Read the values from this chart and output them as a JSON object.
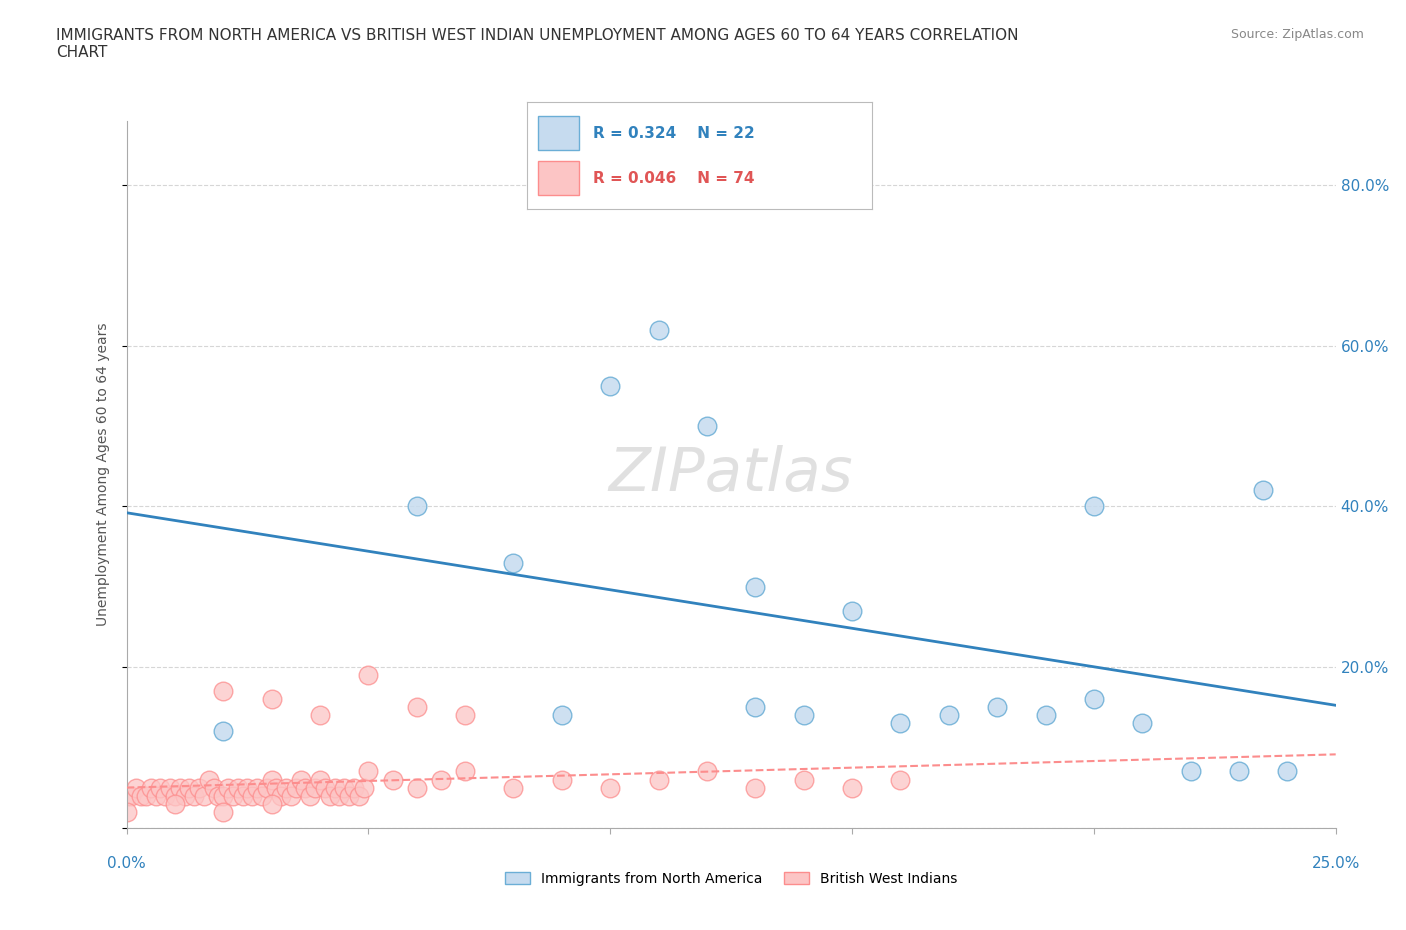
{
  "title": "IMMIGRANTS FROM NORTH AMERICA VS BRITISH WEST INDIAN UNEMPLOYMENT AMONG AGES 60 TO 64 YEARS CORRELATION\nCHART",
  "source": "Source: ZipAtlas.com",
  "ylabel": "Unemployment Among Ages 60 to 64 years",
  "y_ticks": [
    0.0,
    0.2,
    0.4,
    0.6,
    0.8
  ],
  "y_tick_labels": [
    "",
    "20.0%",
    "40.0%",
    "60.0%",
    "80.0%"
  ],
  "x_lim": [
    0.0,
    0.25
  ],
  "y_lim": [
    0.0,
    0.88
  ],
  "legend1_R": "R = 0.324",
  "legend1_N": "N = 22",
  "legend2_R": "R = 0.046",
  "legend2_N": "N = 74",
  "series1_label": "Immigrants from North America",
  "series2_label": "British West Indians",
  "color1": "#6baed6",
  "color2": "#fc8d8d",
  "color1_fill": "#c6dbef",
  "color2_fill": "#fcc5c5",
  "watermark": "ZIPatlas",
  "north_america_x": [
    0.02,
    0.06,
    0.08,
    0.09,
    0.1,
    0.11,
    0.12,
    0.13,
    0.13,
    0.14,
    0.15,
    0.16,
    0.17,
    0.18,
    0.19,
    0.2,
    0.21,
    0.22,
    0.23,
    0.24,
    0.235,
    0.2
  ],
  "north_america_y": [
    0.12,
    0.4,
    0.33,
    0.14,
    0.55,
    0.62,
    0.5,
    0.3,
    0.15,
    0.14,
    0.27,
    0.13,
    0.14,
    0.15,
    0.14,
    0.4,
    0.13,
    0.07,
    0.07,
    0.07,
    0.42,
    0.16
  ],
  "bwi_x": [
    0.0,
    0.001,
    0.002,
    0.003,
    0.004,
    0.005,
    0.006,
    0.007,
    0.008,
    0.009,
    0.01,
    0.011,
    0.012,
    0.013,
    0.014,
    0.015,
    0.016,
    0.017,
    0.018,
    0.019,
    0.02,
    0.021,
    0.022,
    0.023,
    0.024,
    0.025,
    0.026,
    0.027,
    0.028,
    0.029,
    0.03,
    0.031,
    0.032,
    0.033,
    0.034,
    0.035,
    0.036,
    0.037,
    0.038,
    0.039,
    0.04,
    0.041,
    0.042,
    0.043,
    0.044,
    0.045,
    0.046,
    0.047,
    0.048,
    0.049,
    0.05,
    0.055,
    0.06,
    0.065,
    0.07,
    0.08,
    0.09,
    0.1,
    0.11,
    0.12,
    0.13,
    0.14,
    0.15,
    0.16,
    0.05,
    0.03,
    0.02,
    0.04,
    0.06,
    0.07,
    0.0,
    0.01,
    0.02,
    0.03
  ],
  "bwi_y": [
    0.04,
    0.04,
    0.05,
    0.04,
    0.04,
    0.05,
    0.04,
    0.05,
    0.04,
    0.05,
    0.04,
    0.05,
    0.04,
    0.05,
    0.04,
    0.05,
    0.04,
    0.06,
    0.05,
    0.04,
    0.04,
    0.05,
    0.04,
    0.05,
    0.04,
    0.05,
    0.04,
    0.05,
    0.04,
    0.05,
    0.06,
    0.05,
    0.04,
    0.05,
    0.04,
    0.05,
    0.06,
    0.05,
    0.04,
    0.05,
    0.06,
    0.05,
    0.04,
    0.05,
    0.04,
    0.05,
    0.04,
    0.05,
    0.04,
    0.05,
    0.07,
    0.06,
    0.05,
    0.06,
    0.07,
    0.05,
    0.06,
    0.05,
    0.06,
    0.07,
    0.05,
    0.06,
    0.05,
    0.06,
    0.19,
    0.16,
    0.17,
    0.14,
    0.15,
    0.14,
    0.02,
    0.03,
    0.02,
    0.03
  ]
}
